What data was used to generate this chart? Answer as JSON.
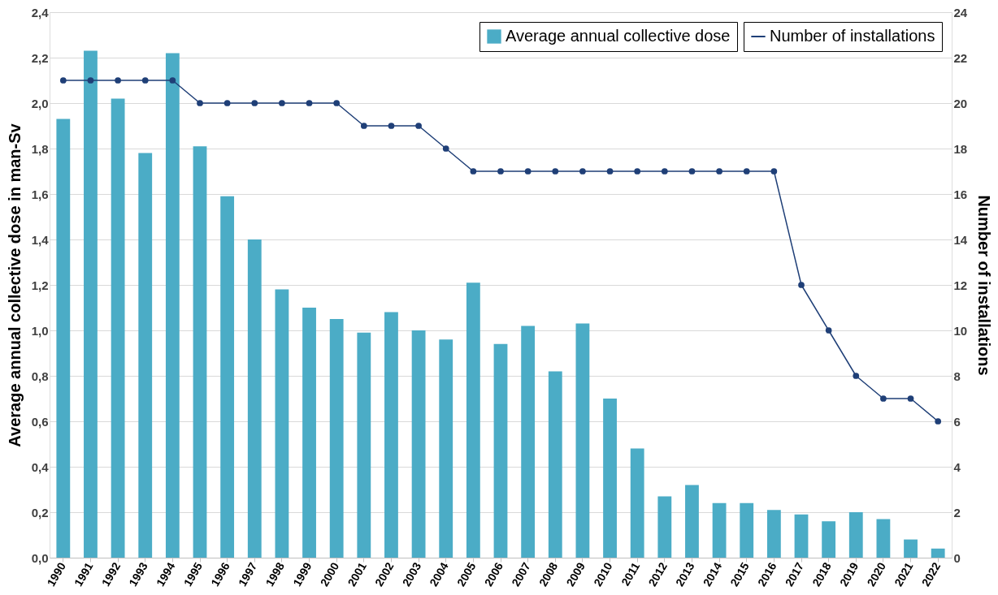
{
  "chart_data": {
    "type": "bar",
    "categories": [
      "1990",
      "1991",
      "1992",
      "1993",
      "1994",
      "1995",
      "1996",
      "1997",
      "1998",
      "1999",
      "2000",
      "2001",
      "2002",
      "2003",
      "2004",
      "2005",
      "2006",
      "2007",
      "2008",
      "2009",
      "2010",
      "2011",
      "2012",
      "2013",
      "2014",
      "2015",
      "2016",
      "2017",
      "2018",
      "2019",
      "2020",
      "2021",
      "2022"
    ],
    "series": [
      {
        "name": "Average annual collective dose",
        "color": "#4bacc6",
        "values": [
          1.93,
          2.23,
          2.02,
          1.78,
          2.22,
          1.81,
          1.59,
          1.4,
          1.18,
          1.1,
          1.05,
          0.99,
          1.08,
          1.0,
          0.96,
          1.21,
          0.94,
          1.02,
          0.82,
          1.03,
          0.7,
          0.48,
          0.27,
          0.32,
          0.24,
          0.24,
          0.21,
          0.19,
          0.16,
          0.2,
          0.17,
          0.08,
          0.04
        ]
      },
      {
        "name": "Number of installations",
        "type": "line",
        "axis": "y2",
        "color": "#1f3f77",
        "marker": "circle",
        "values": [
          21,
          21,
          21,
          21,
          21,
          20,
          20,
          20,
          20,
          20,
          20,
          19,
          19,
          19,
          18,
          17,
          17,
          17,
          17,
          17,
          17,
          17,
          17,
          17,
          17,
          17,
          17,
          12,
          10,
          8,
          7,
          7,
          6
        ]
      }
    ],
    "ylabel": "Average annual collective dose in man-Sv",
    "y2label": "Number of installations",
    "ylim": [
      0,
      2.4
    ],
    "yticks": [
      {
        "value": 0,
        "label": "0,0"
      },
      {
        "value": 0.2,
        "label": "0,2"
      },
      {
        "value": 0.4,
        "label": "0,4"
      },
      {
        "value": 0.6,
        "label": "0,6"
      },
      {
        "value": 0.8,
        "label": "0,8"
      },
      {
        "value": 1,
        "label": "1,0"
      },
      {
        "value": 1.2,
        "label": "1,2"
      },
      {
        "value": 1.4,
        "label": "1,4"
      },
      {
        "value": 1.6,
        "label": "1,6"
      },
      {
        "value": 1.8,
        "label": "1,8"
      },
      {
        "value": 2,
        "label": "2,0"
      },
      {
        "value": 2.2,
        "label": "2,2"
      },
      {
        "value": 2.4,
        "label": "2,4"
      }
    ],
    "y2lim": [
      0,
      24
    ],
    "y2ticks": [
      0,
      2,
      4,
      6,
      8,
      10,
      12,
      14,
      16,
      18,
      20,
      22,
      24
    ],
    "grid": "y",
    "legend": "top right"
  }
}
